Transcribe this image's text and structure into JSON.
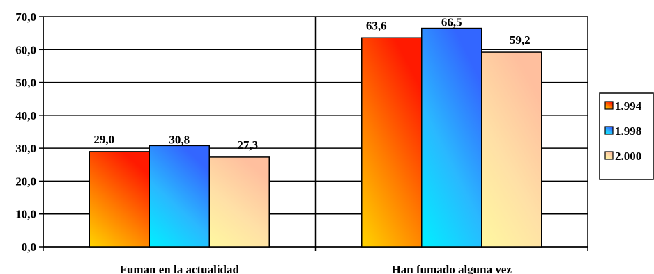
{
  "chart_data": {
    "type": "bar",
    "title": "",
    "xlabel": "",
    "ylabel": "",
    "categories": [
      "Fuman en la actualidad",
      "Han fumado alguna vez"
    ],
    "series": [
      {
        "name": "1.994",
        "values": [
          29.0,
          63.6
        ],
        "value_labels": [
          "29,0",
          "63,6"
        ]
      },
      {
        "name": "1.998",
        "values": [
          30.8,
          66.5
        ],
        "value_labels": [
          "30,8",
          "66,5"
        ]
      },
      {
        "name": "2.000",
        "values": [
          27.3,
          59.2
        ],
        "value_labels": [
          "27,3",
          "59,2"
        ]
      }
    ],
    "ylim": [
      0,
      70
    ],
    "yticks": [
      0,
      10,
      20,
      30,
      40,
      50,
      60,
      70
    ],
    "ytick_labels": [
      "0,0",
      "10,0",
      "20,0",
      "30,0",
      "40,0",
      "50,0",
      "60,0",
      "70,0"
    ],
    "grid": true,
    "legend_position": "right",
    "colors": {
      "1.994": [
        "#ffd400",
        "#ff7a00",
        "#ff1a00"
      ],
      "1.998": [
        "#00f0ff",
        "#2ab8ff",
        "#3366ff"
      ],
      "2.000": [
        "#fff8a0",
        "#ffe0a6",
        "#ffbf9e"
      ]
    }
  }
}
